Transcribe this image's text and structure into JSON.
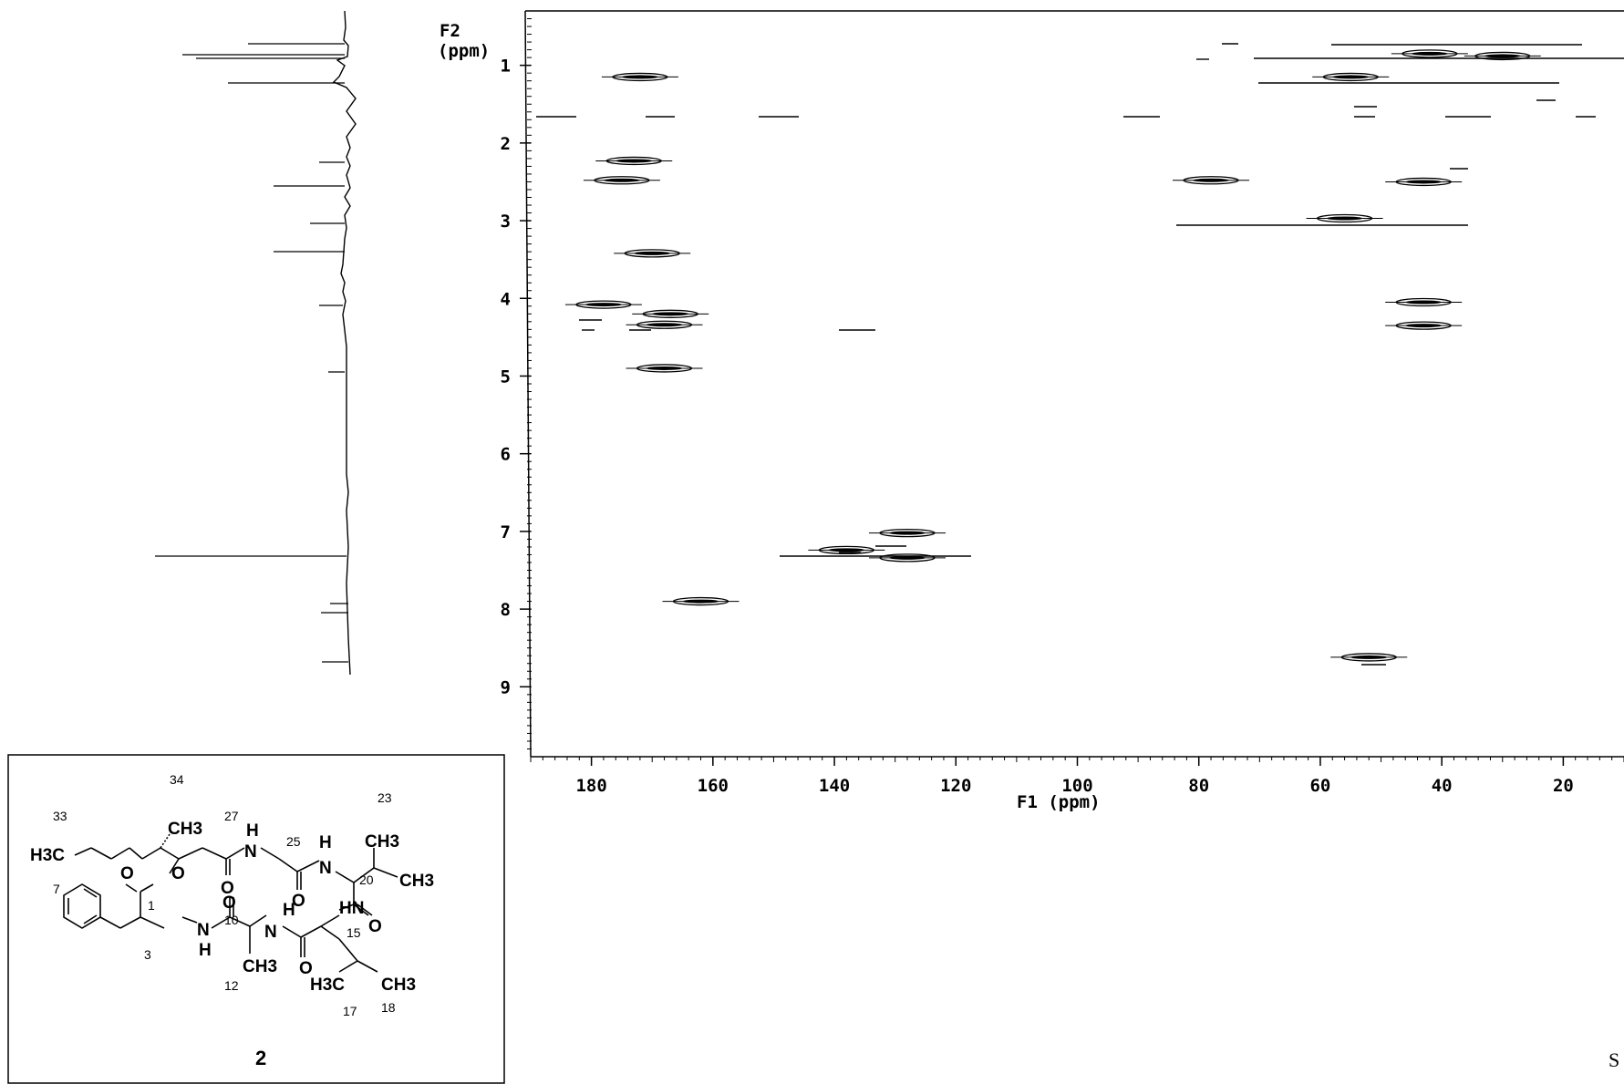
{
  "figure": {
    "f2_label_line1": "F2",
    "f2_label_line2": "(ppm)",
    "f1_label": "F1 (ppm)",
    "page_mark": "S"
  },
  "chart_data": {
    "type": "scatter",
    "title": "",
    "xlabel": "F1 (ppm)",
    "ylabel": "F2 (ppm)",
    "x_reversed": true,
    "y_reversed": true,
    "xlim": [
      190,
      10
    ],
    "ylim": [
      0.3,
      9.9
    ],
    "x_ticks": [
      180,
      160,
      140,
      120,
      100,
      80,
      60,
      40,
      20
    ],
    "y_ticks": [
      1,
      2,
      3,
      4,
      5,
      6,
      7,
      8,
      9
    ],
    "grid": false,
    "series": [
      {
        "points": [
          {
            "x": 172,
            "y": 1.15
          },
          {
            "x": 173,
            "y": 2.23
          },
          {
            "x": 175,
            "y": 2.48
          },
          {
            "x": 170,
            "y": 3.42
          },
          {
            "x": 178,
            "y": 4.08
          },
          {
            "x": 167,
            "y": 4.2
          },
          {
            "x": 168,
            "y": 4.34
          },
          {
            "x": 168,
            "y": 4.9
          },
          {
            "x": 162,
            "y": 7.9
          },
          {
            "x": 138,
            "y": 7.24
          },
          {
            "x": 128,
            "y": 7.02
          },
          {
            "x": 128,
            "y": 7.34
          },
          {
            "x": 55,
            "y": 1.15
          },
          {
            "x": 42,
            "y": 0.85
          },
          {
            "x": 30,
            "y": 0.88
          },
          {
            "x": 78,
            "y": 2.48
          },
          {
            "x": 56,
            "y": 2.97
          },
          {
            "x": 43,
            "y": 2.5
          },
          {
            "x": 43,
            "y": 4.05
          },
          {
            "x": 43,
            "y": 4.35
          },
          {
            "x": 52,
            "y": 8.62
          }
        ]
      }
    ]
  },
  "structure": {
    "compound_number": "2",
    "atoms": [
      "CH3",
      "H3C",
      "N",
      "H",
      "O",
      "O",
      "O",
      "H",
      "N",
      "CH3",
      "CH3",
      "O",
      "O",
      "N",
      "H",
      "H",
      "N",
      "HN",
      "O",
      "CH3",
      "O",
      "H3C",
      "CH3"
    ],
    "position_labels": [
      "34",
      "33",
      "27",
      "25",
      "23",
      "20",
      "7",
      "1",
      "10",
      "15",
      "3",
      "12",
      "17",
      "18"
    ]
  }
}
